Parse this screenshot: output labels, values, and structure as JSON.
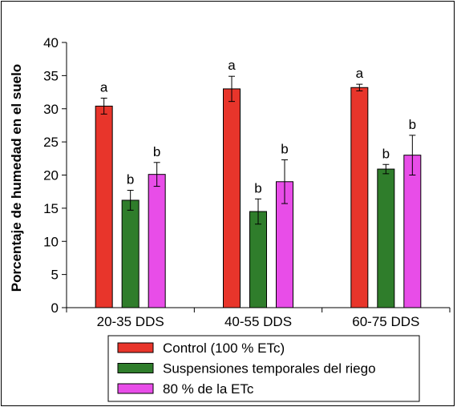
{
  "chart_data": {
    "type": "bar",
    "ylabel": "Porcentaje de humedad en el suelo",
    "ylim": [
      0,
      40
    ],
    "yticks": [
      0,
      5,
      10,
      15,
      20,
      25,
      30,
      35,
      40
    ],
    "categories": [
      "20-35 DDS",
      "40-55 DDS",
      "60-75 DDS"
    ],
    "legend_position": "bottom",
    "series": [
      {
        "name": "Control (100 % ETc)",
        "color": "#e8352b",
        "values": [
          30.4,
          33.0,
          33.2
        ],
        "errors": [
          1.2,
          1.9,
          0.5
        ],
        "labels": [
          "a",
          "a",
          "a"
        ]
      },
      {
        "name": "Suspensiones temporales del riego",
        "color": "#2f7d2b",
        "values": [
          16.2,
          14.5,
          20.9
        ],
        "errors": [
          1.5,
          1.9,
          0.7
        ],
        "labels": [
          "b",
          "b",
          "b"
        ]
      },
      {
        "name": "80 % de la ETc",
        "color": "#e84de8",
        "values": [
          20.1,
          19.0,
          23.0
        ],
        "errors": [
          1.8,
          3.3,
          3.0
        ],
        "labels": [
          "b",
          "b",
          "b"
        ]
      }
    ]
  }
}
